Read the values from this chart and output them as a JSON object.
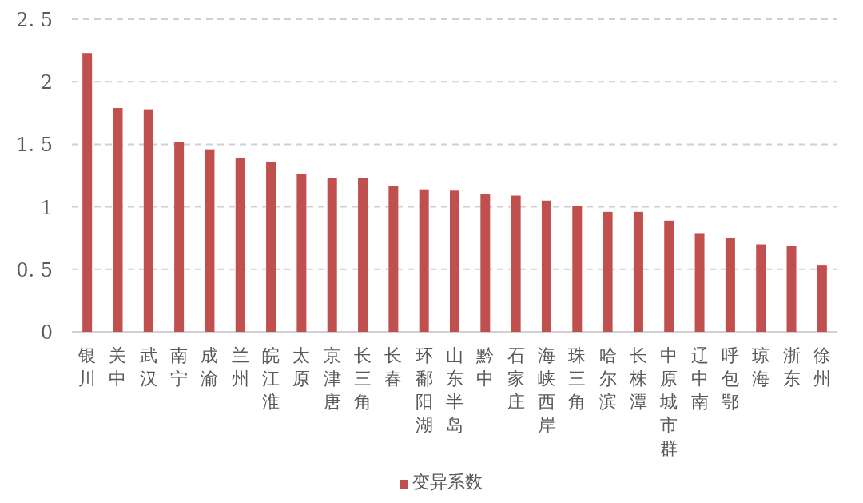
{
  "chart_data": {
    "type": "bar",
    "categories": [
      "银川",
      "关中",
      "武汉",
      "南宁",
      "成渝",
      "兰州",
      "皖江淮",
      "太原",
      "京津唐",
      "长三角",
      "长春",
      "环鄱阳湖",
      "山东半岛",
      "黔中",
      "石家庄",
      "海峡西岸",
      "珠三角",
      "哈尔滨",
      "长株潭",
      "中原城市群",
      "辽中南",
      "呼包鄂",
      "琼海",
      "浙东",
      "徐州"
    ],
    "series": [
      {
        "name": "变异系数",
        "color": "#c0504d",
        "values": [
          2.23,
          1.79,
          1.78,
          1.52,
          1.46,
          1.39,
          1.36,
          1.26,
          1.23,
          1.23,
          1.17,
          1.14,
          1.13,
          1.1,
          1.09,
          1.05,
          1.01,
          0.96,
          0.96,
          0.89,
          0.79,
          0.75,
          0.7,
          0.69,
          0.53
        ]
      }
    ],
    "ylim": [
      0,
      2.5
    ],
    "yticks": [
      0,
      {
        "value": 0.5,
        "label": "0. 5"
      },
      1,
      {
        "value": 1.5,
        "label": "1. 5"
      },
      2,
      {
        "value": 2.5,
        "label": "2. 5"
      }
    ],
    "grid": "y",
    "legend": "bottom"
  }
}
